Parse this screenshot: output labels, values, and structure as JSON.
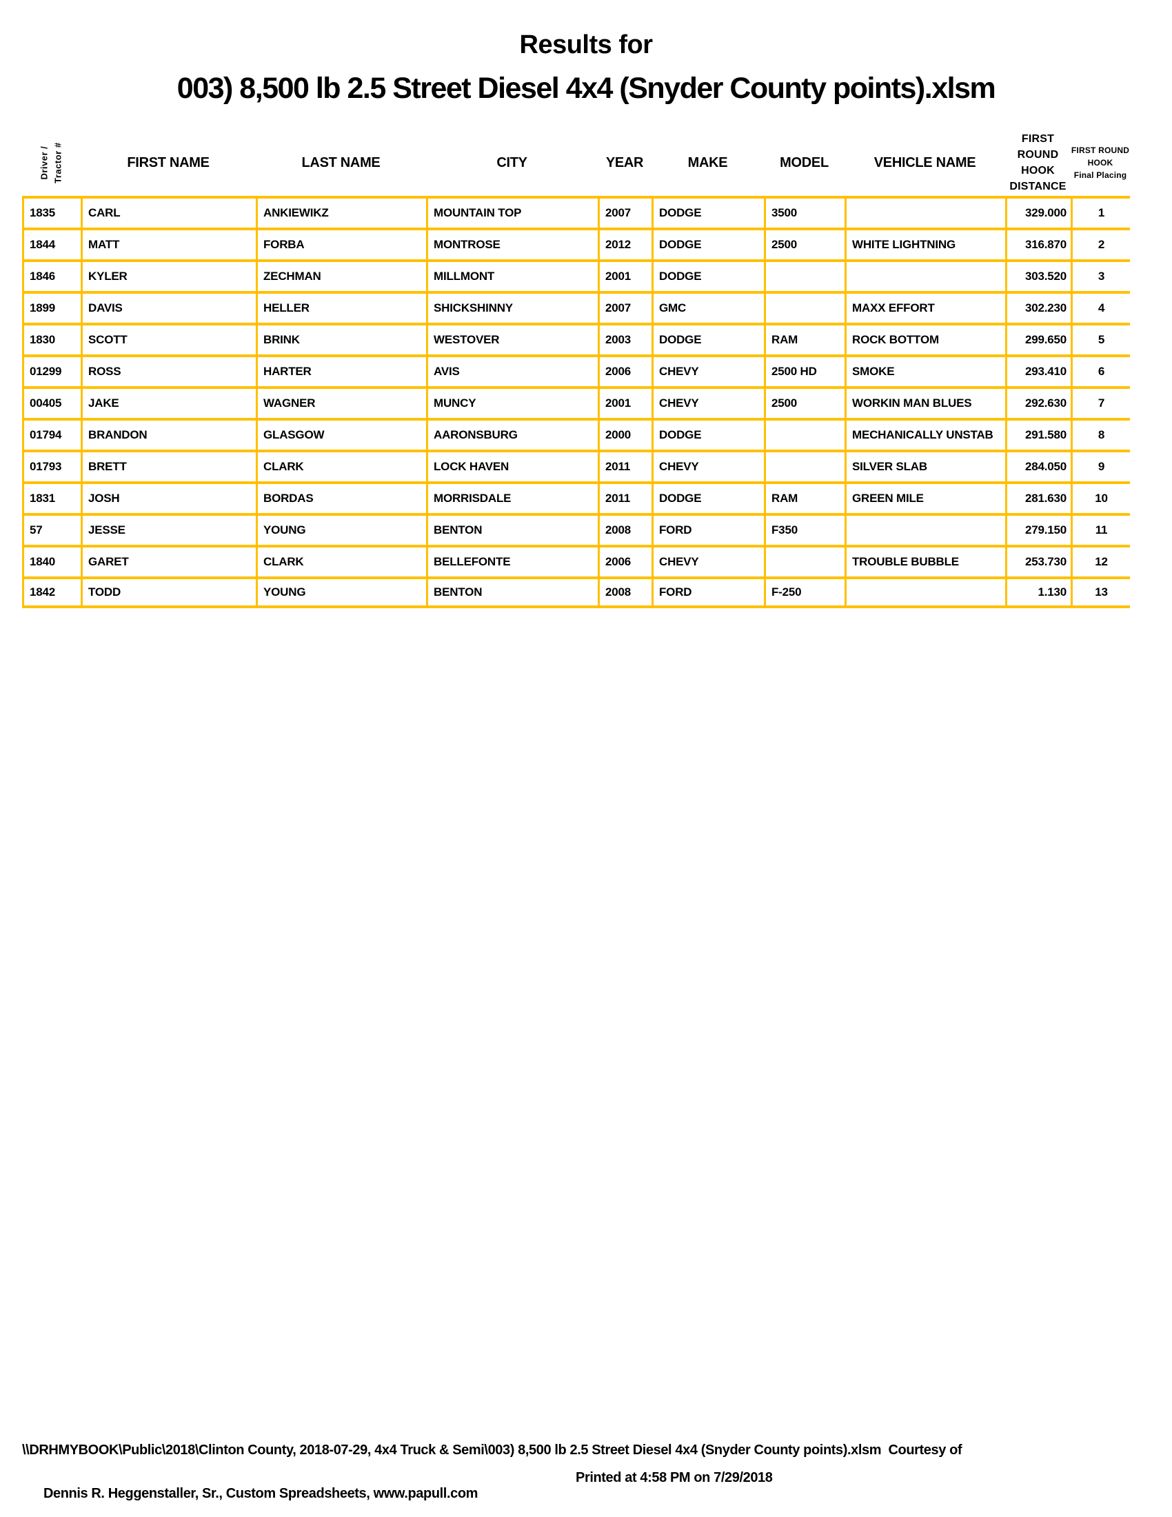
{
  "title": "Results for",
  "subtitle": "003) 8,500 lb 2.5 Street Diesel 4x4 (Snyder County points).xlsm",
  "colors": {
    "grid_line": "#FFC000",
    "text": "#000000",
    "background": "#FFFFFF"
  },
  "table": {
    "headers": {
      "driver_lines": [
        "Driver /",
        "Tractor #"
      ],
      "first_name": "FIRST NAME",
      "last_name": "LAST NAME",
      "city": "CITY",
      "year": "YEAR",
      "make": "MAKE",
      "model": "MODEL",
      "vehicle_name": "VEHICLE NAME",
      "hook_distance_lines": [
        "FIRST",
        "ROUND",
        "HOOK",
        "DISTANCE"
      ],
      "final_placing_lines": [
        "FIRST ROUND",
        "HOOK",
        "Final Placing"
      ]
    },
    "rows": [
      {
        "driver_num": "1835",
        "first_name": "CARL",
        "last_name": "ANKIEWIKZ",
        "city": "MOUNTAIN TOP",
        "year": "2007",
        "make": "DODGE",
        "model": "3500",
        "vehicle_name": "",
        "hook_distance": "329.000",
        "placing": "1"
      },
      {
        "driver_num": "1844",
        "first_name": "MATT",
        "last_name": "FORBA",
        "city": "MONTROSE",
        "year": "2012",
        "make": "DODGE",
        "model": "2500",
        "vehicle_name": "WHITE LIGHTNING",
        "hook_distance": "316.870",
        "placing": "2"
      },
      {
        "driver_num": "1846",
        "first_name": "KYLER",
        "last_name": "ZECHMAN",
        "city": "MILLMONT",
        "year": "2001",
        "make": "DODGE",
        "model": "",
        "vehicle_name": "",
        "hook_distance": "303.520",
        "placing": "3"
      },
      {
        "driver_num": "1899",
        "first_name": "DAVIS",
        "last_name": "HELLER",
        "city": "SHICKSHINNY",
        "year": "2007",
        "make": "GMC",
        "model": "",
        "vehicle_name": "MAXX EFFORT",
        "hook_distance": "302.230",
        "placing": "4"
      },
      {
        "driver_num": "1830",
        "first_name": "SCOTT",
        "last_name": "BRINK",
        "city": "WESTOVER",
        "year": "2003",
        "make": "DODGE",
        "model": "RAM",
        "vehicle_name": "ROCK BOTTOM",
        "hook_distance": "299.650",
        "placing": "5"
      },
      {
        "driver_num": "01299",
        "first_name": "ROSS",
        "last_name": "HARTER",
        "city": "AVIS",
        "year": "2006",
        "make": "CHEVY",
        "model": "2500 HD",
        "vehicle_name": "SMOKE",
        "hook_distance": "293.410",
        "placing": "6"
      },
      {
        "driver_num": "00405",
        "first_name": "JAKE",
        "last_name": "WAGNER",
        "city": "MUNCY",
        "year": "2001",
        "make": "CHEVY",
        "model": "2500",
        "vehicle_name": "WORKIN MAN BLUES",
        "hook_distance": "292.630",
        "placing": "7"
      },
      {
        "driver_num": "01794",
        "first_name": "BRANDON",
        "last_name": "GLASGOW",
        "city": "AARONSBURG",
        "year": "2000",
        "make": "DODGE",
        "model": "",
        "vehicle_name": "MECHANICALLY UNSTAB",
        "hook_distance": "291.580",
        "placing": "8"
      },
      {
        "driver_num": "01793",
        "first_name": "BRETT",
        "last_name": "CLARK",
        "city": "LOCK HAVEN",
        "year": "2011",
        "make": "CHEVY",
        "model": "",
        "vehicle_name": "SILVER SLAB",
        "hook_distance": "284.050",
        "placing": "9"
      },
      {
        "driver_num": "1831",
        "first_name": "JOSH",
        "last_name": "BORDAS",
        "city": "MORRISDALE",
        "year": "2011",
        "make": "DODGE",
        "model": "RAM",
        "vehicle_name": "GREEN MILE",
        "hook_distance": "281.630",
        "placing": "10"
      },
      {
        "driver_num": "57",
        "first_name": "JESSE",
        "last_name": "YOUNG",
        "city": "BENTON",
        "year": "2008",
        "make": "FORD",
        "model": "F350",
        "vehicle_name": "",
        "hook_distance": "279.150",
        "placing": "11"
      },
      {
        "driver_num": "1840",
        "first_name": "GARET",
        "last_name": "CLARK",
        "city": "BELLEFONTE",
        "year": "2006",
        "make": "CHEVY",
        "model": "",
        "vehicle_name": "TROUBLE BUBBLE",
        "hook_distance": "253.730",
        "placing": "12"
      },
      {
        "driver_num": "1842",
        "first_name": "TODD",
        "last_name": "YOUNG",
        "city": "BENTON",
        "year": "2008",
        "make": "FORD",
        "model": "F-250",
        "vehicle_name": "",
        "hook_distance": "1.130",
        "placing": "13"
      }
    ]
  },
  "footer": {
    "line1": "\\\\DRHMYBOOK\\Public\\2018\\Clinton County, 2018-07-29, 4x4 Truck & Semi\\003) 8,500 lb 2.5 Street Diesel 4x4 (Snyder County points).xlsm  Courtesy of",
    "line2_left": "Dennis R. Heggenstaller, Sr., Custom Spreadsheets, www.papull.com",
    "line2_right": "Printed at 4:58 PM on 7/29/2018"
  }
}
